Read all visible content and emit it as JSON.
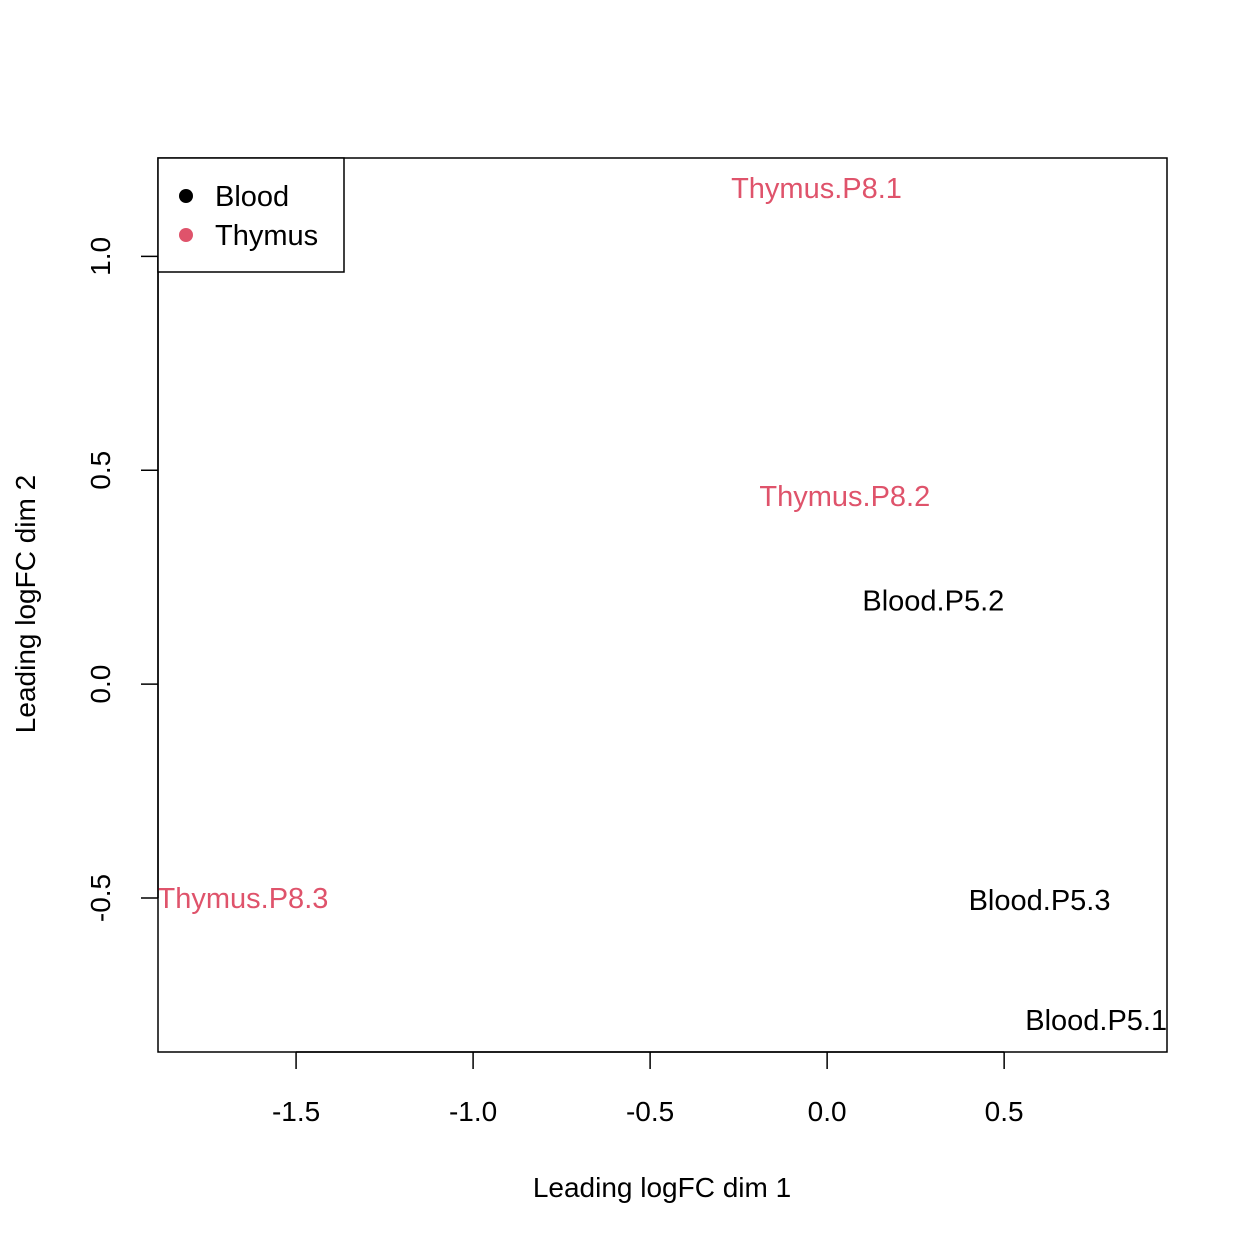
{
  "chart_data": {
    "type": "scatter",
    "xlabel": "Leading logFC dim 1",
    "ylabel": "Leading logFC dim 2",
    "xlim": [
      -1.89,
      0.96
    ],
    "ylim": [
      -0.86,
      1.23
    ],
    "x_ticks": [
      {
        "value": -1.5,
        "label": "-1.5"
      },
      {
        "value": -1.0,
        "label": "-1.0"
      },
      {
        "value": -0.5,
        "label": "-0.5"
      },
      {
        "value": 0.0,
        "label": "0.0"
      },
      {
        "value": 0.5,
        "label": "0.5"
      }
    ],
    "y_ticks": [
      {
        "value": -0.5,
        "label": "-0.5"
      },
      {
        "value": 0.0,
        "label": "0.0"
      },
      {
        "value": 0.5,
        "label": "0.5"
      },
      {
        "value": 1.0,
        "label": "1.0"
      }
    ],
    "legend": {
      "position": "top-left",
      "entries": [
        {
          "label": "Blood",
          "color": "#000000"
        },
        {
          "label": "Thymus",
          "color": "#DF536B"
        }
      ]
    },
    "points": [
      {
        "label": "Thymus.P8.1",
        "group": "Thymus",
        "x": -0.03,
        "y": 1.16
      },
      {
        "label": "Thymus.P8.2",
        "group": "Thymus",
        "x": 0.05,
        "y": 0.44
      },
      {
        "label": "Blood.P5.2",
        "group": "Blood",
        "x": 0.3,
        "y": 0.195
      },
      {
        "label": "Thymus.P8.3",
        "group": "Thymus",
        "x": -1.65,
        "y": -0.5
      },
      {
        "label": "Blood.P5.3",
        "group": "Blood",
        "x": 0.6,
        "y": -0.505
      },
      {
        "label": "Blood.P5.1",
        "group": "Blood",
        "x": 0.76,
        "y": -0.785
      }
    ]
  }
}
